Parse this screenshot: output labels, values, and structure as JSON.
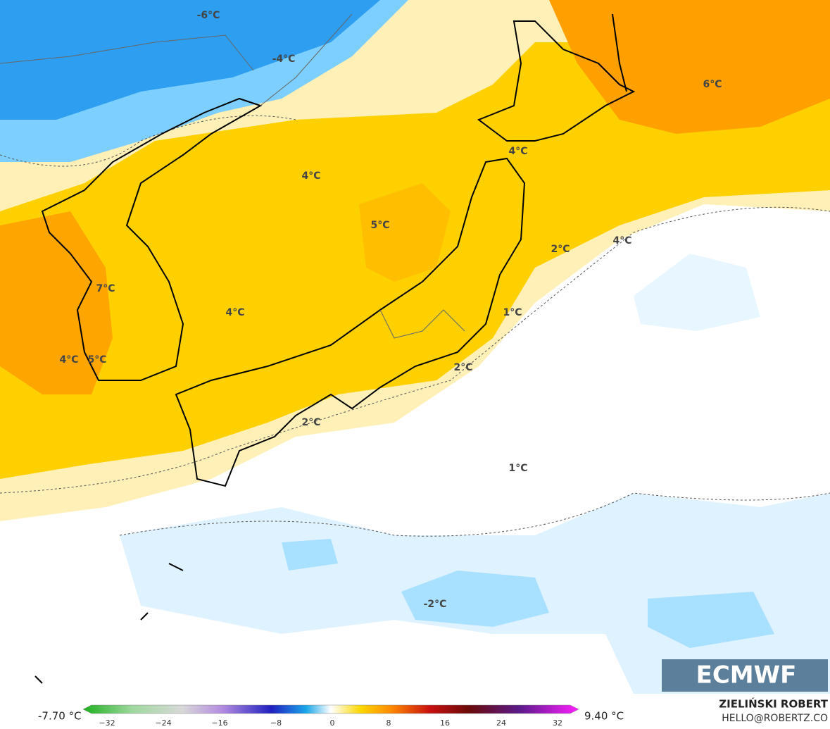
{
  "map": {
    "labels": [
      "-6°C",
      "-4°C",
      "4°C",
      "5°C",
      "4°C",
      "7°C",
      "4°C",
      "5°C",
      "6°C",
      "4°C",
      "2°C",
      "4°C",
      "1°C",
      "2°C",
      "2°C",
      "1°C",
      "-2°C"
    ],
    "logo": "ECMWF"
  },
  "legend": {
    "min": "-7.70 °C",
    "max": "9.40 °C",
    "ticks": [
      "−32",
      "−24",
      "−16",
      "−8",
      "0",
      "8",
      "16",
      "24",
      "32"
    ]
  },
  "credits": {
    "author": "ZIELIŃSKI ROBERT",
    "contact": "HELLO@ROBERTZ.CO"
  }
}
